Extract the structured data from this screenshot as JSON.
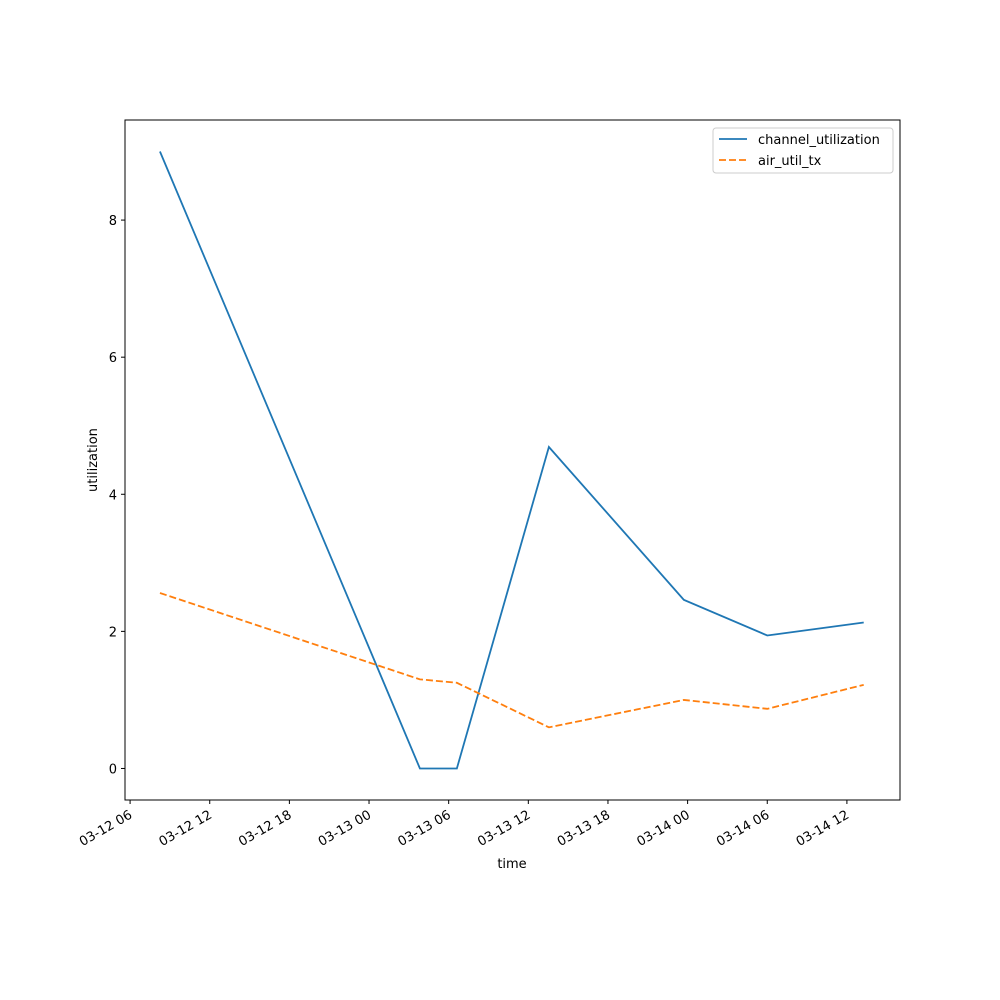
{
  "chart_data": {
    "type": "line",
    "x_label": "time",
    "y_label": "utilization",
    "x": [
      "03-12 08:15",
      "03-13 03:50",
      "03-13 06:37",
      "03-13 13:33",
      "03-13 23:43",
      "03-14 06:00",
      "03-14 13:16"
    ],
    "series": [
      {
        "name": "channel_utilization",
        "color": "#1f77b4",
        "linestyle": "solid",
        "values": [
          9.0,
          0,
          0,
          4.69,
          2.46,
          1.94,
          2.13
        ]
      },
      {
        "name": "air_util_tx",
        "color": "#ff7f0e",
        "linestyle": "dashed",
        "values": [
          2.56,
          1.3,
          1.25,
          0.6,
          1.0,
          0.87,
          1.22
        ]
      }
    ],
    "xlim": [
      "03-12 05:37",
      "03-14 16:00"
    ],
    "xticks": [
      "03-12 06",
      "03-12 12",
      "03-12 18",
      "03-13 00",
      "03-13 06",
      "03-13 12",
      "03-13 18",
      "03-14 00",
      "03-14 06",
      "03-14 12"
    ],
    "ylim": [
      -0.46,
      9.46
    ],
    "yticks": [
      0,
      2,
      4,
      6,
      8
    ],
    "legend": "upper right"
  }
}
